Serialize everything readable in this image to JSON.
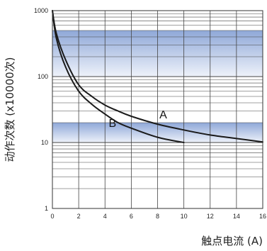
{
  "chart_data": {
    "type": "line",
    "title": "",
    "xlabel": "触点电流 (A)",
    "ylabel": "动作次数 (x10000次)",
    "xlim": [
      0,
      16
    ],
    "ylim": [
      1,
      1000
    ],
    "y_scale": "log",
    "x_ticks": [
      "0",
      "2",
      "4",
      "6",
      "8",
      "10",
      "12",
      "14",
      "16"
    ],
    "y_ticks": [
      "1",
      "10",
      "100",
      "1000"
    ],
    "grid": true,
    "shaded_bands": [
      [
        10,
        20
      ],
      [
        100,
        500
      ]
    ],
    "series": [
      {
        "name": "A",
        "color": "#1a1a1a",
        "x": [
          0,
          0.3,
          1,
          2,
          3,
          4,
          5,
          6,
          8,
          10,
          12,
          14,
          16
        ],
        "y": [
          1000,
          450,
          180,
          75,
          50,
          37,
          30,
          25,
          19,
          15.5,
          13,
          11.5,
          10.2
        ]
      },
      {
        "name": "B",
        "color": "#1a1a1a",
        "x": [
          0,
          0.3,
          1,
          2,
          3,
          4,
          5,
          6,
          8,
          10
        ],
        "y": [
          1000,
          380,
          140,
          60,
          38,
          27,
          20,
          16.5,
          12,
          10
        ]
      }
    ]
  }
}
